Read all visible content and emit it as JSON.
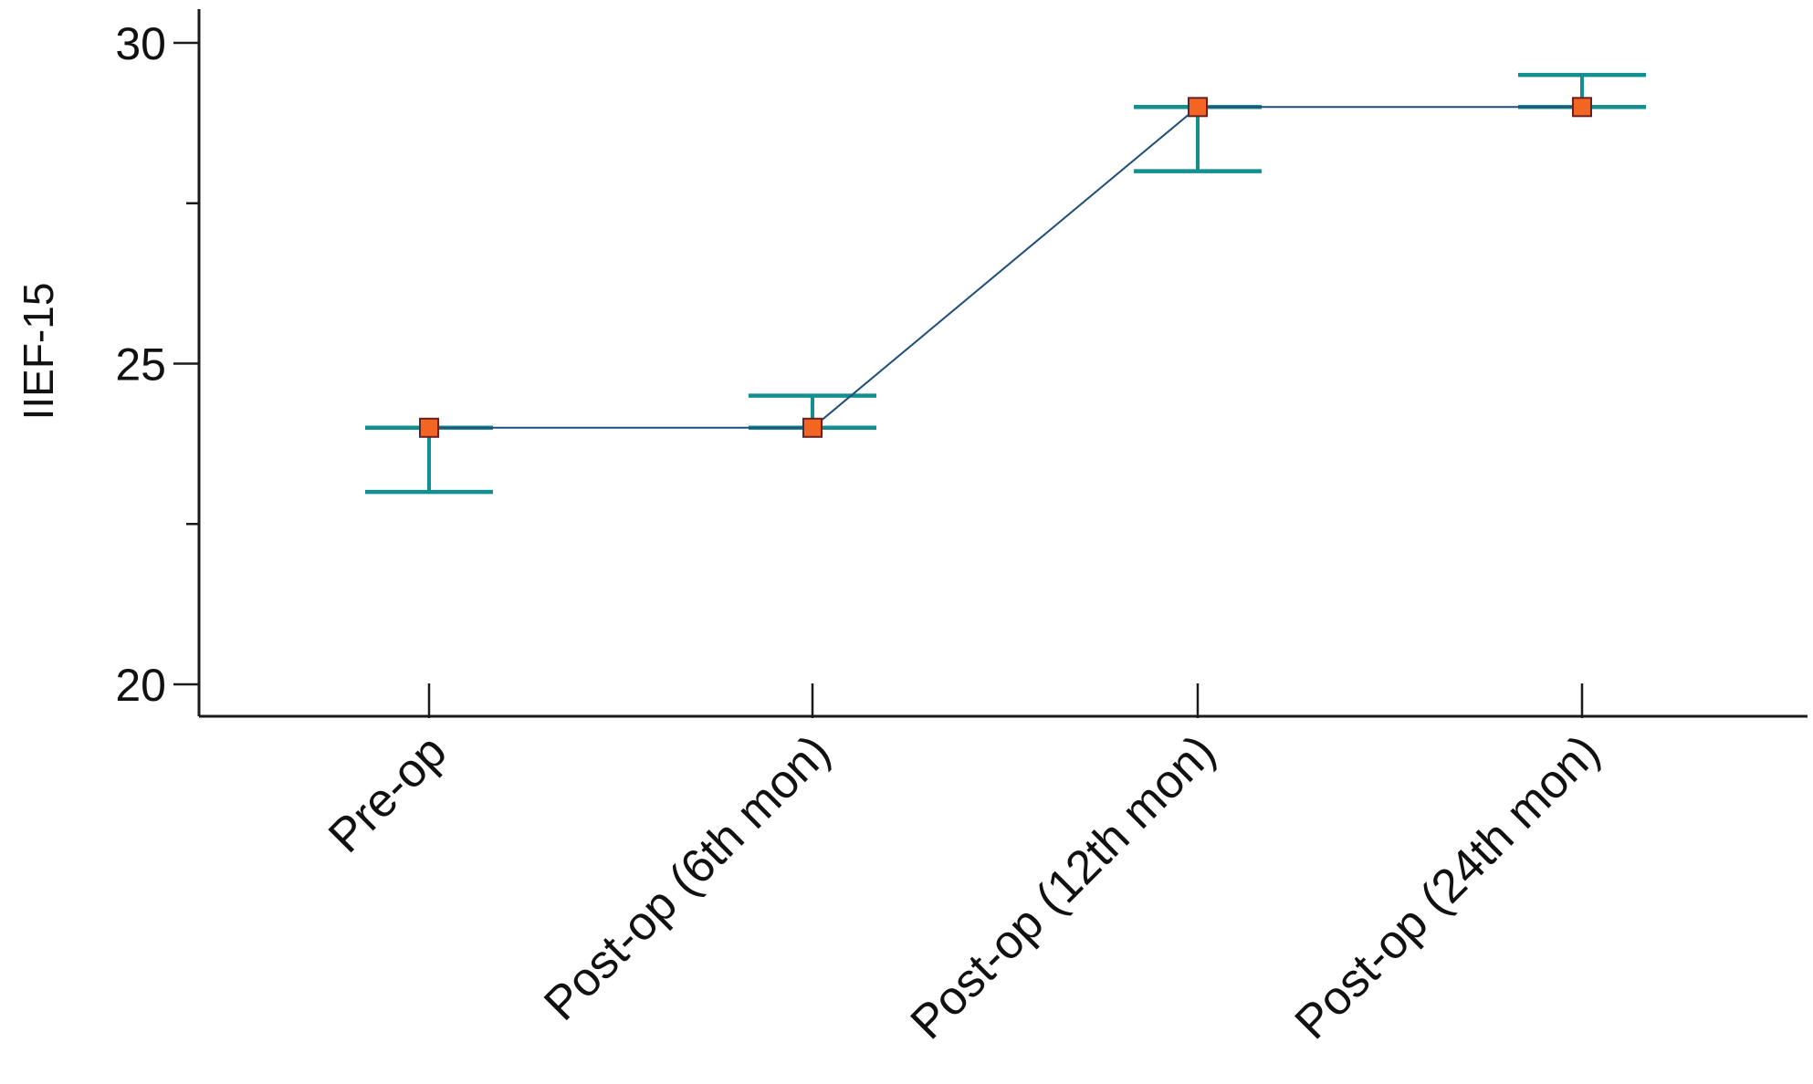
{
  "chart_data": {
    "type": "line",
    "title": "",
    "xlabel": "",
    "ylabel": "IIEF-15",
    "ylim": [
      19.5,
      30.5
    ],
    "y_major_ticks": [
      20,
      25,
      30
    ],
    "y_major_tick_labels": [
      "20",
      "25",
      "30"
    ],
    "y_minor_ticks": [
      22.5,
      27.5
    ],
    "grid": false,
    "legend": "none",
    "categories": [
      "Pre-op",
      "Post-op (6th mon)",
      "Post-op (12th mon)",
      "Post-op (24th mon)"
    ],
    "series": [
      {
        "values": [
          24,
          24,
          29,
          29
        ],
        "lower": [
          23,
          24,
          28,
          29
        ],
        "upper": [
          24,
          24.5,
          29,
          29.5
        ]
      }
    ],
    "colors": {
      "line": "#1f4e79",
      "marker_fill": "#f26522",
      "marker_stroke": "#6b1f1f",
      "error_bar": "#138f8f",
      "axis": "#1a1a1a"
    }
  }
}
